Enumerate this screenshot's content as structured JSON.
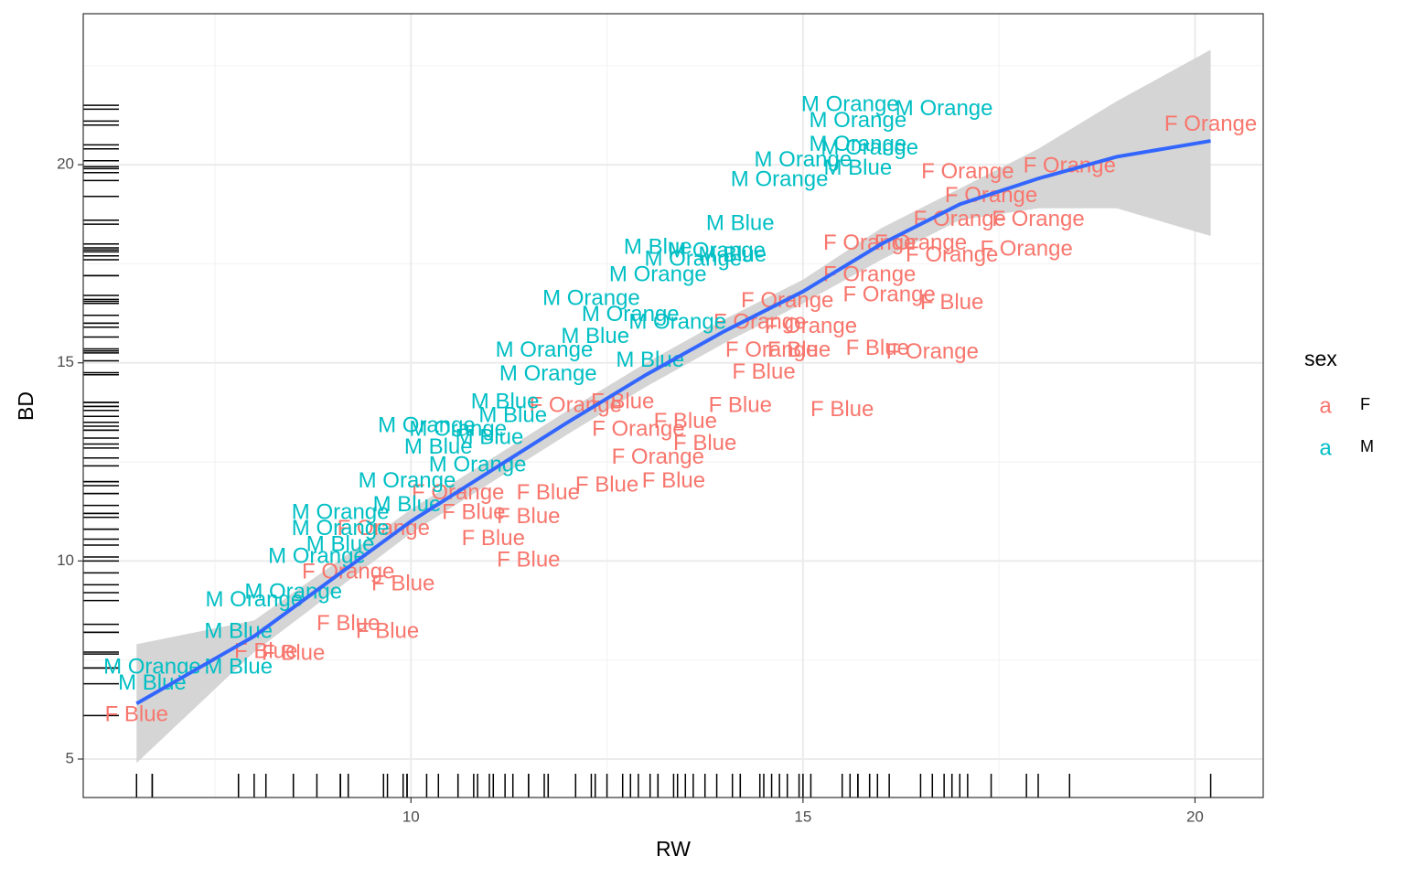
{
  "chart_data": {
    "type": "scatter",
    "xlabel": "RW",
    "ylabel": "BD",
    "xlim": [
      5.82,
      20.87
    ],
    "ylim": [
      4.03,
      23.81
    ],
    "xticks": [
      10,
      15,
      20
    ],
    "yticks": [
      5,
      10,
      15,
      20
    ],
    "x_minor_breaks": [
      7.5,
      12.5,
      17.5
    ],
    "y_minor_breaks": [
      7.5,
      12.5,
      17.5,
      22.5
    ],
    "grid": true,
    "legend_title": "sex",
    "legend_key_glyph": "a",
    "series": [
      {
        "name": "F",
        "color": "#F8766D",
        "x": [
          6.5,
          20.2,
          18.4,
          17.1,
          17.4,
          18.0,
          17.85,
          17.0,
          16.9,
          15.85,
          16.9,
          16.1,
          15.95,
          16.65,
          15.1,
          14.95,
          15.5,
          13.75,
          13.35,
          12.5,
          12.9,
          11.5,
          10.8,
          11.5,
          9.9,
          9.7,
          9.2,
          8.5,
          8.15,
          9.2,
          9.65,
          11.75,
          12.1,
          14.2,
          14.5,
          14.6,
          14.45,
          14.8,
          13.5,
          15.85,
          16.5,
          12.7,
          13.15,
          11.05,
          10.6
        ],
        "y": [
          6.1,
          21.0,
          19.95,
          19.8,
          19.2,
          18.6,
          17.85,
          18.6,
          17.7,
          18.0,
          16.5,
          16.7,
          15.35,
          15.25,
          15.9,
          15.3,
          13.8,
          12.95,
          12.0,
          11.9,
          13.3,
          11.1,
          11.2,
          10.0,
          9.4,
          8.2,
          8.4,
          7.65,
          7.7,
          9.7,
          10.8,
          11.7,
          13.9,
          13.9,
          14.75,
          15.3,
          16.0,
          16.55,
          13.5,
          17.2,
          18.0,
          14.0,
          12.6,
          10.55,
          11.7
        ],
        "labels": [
          "F Blue",
          "F Orange",
          "F Orange",
          "F Orange",
          "F Orange",
          "F Orange",
          "F Orange",
          "F Orange",
          "F Orange",
          "F Orange",
          "F Blue",
          "F Orange",
          "F Blue",
          "F Orange",
          "F Orange",
          "F Blue",
          "F Blue",
          "F Blue",
          "F Blue",
          "F Blue",
          "F Orange",
          "F Blue",
          "F Blue",
          "F Blue",
          "F Blue",
          "F Blue",
          "F Blue",
          "F Blue",
          "F Blue",
          "F Orange",
          "F Orange",
          "F Blue",
          "F Orange",
          "F Blue",
          "F Blue",
          "F Orange",
          "F Orange",
          "F Orange",
          "F Blue",
          "F Orange",
          "F Orange",
          "F Blue",
          "F Orange",
          "F Blue",
          "F Orange"
        ]
      },
      {
        "name": "M",
        "color": "#00BFC4",
        "x": [
          6.7,
          6.7,
          7.8,
          7.8,
          8.0,
          8.5,
          8.8,
          9.1,
          9.1,
          9.1,
          9.95,
          9.95,
          10.2,
          11.0,
          11.7,
          12.3,
          13.6,
          14.2,
          14.7,
          15.0,
          15.6,
          16.8,
          15.7,
          15.7,
          15.7,
          15.85,
          13.15,
          13.15,
          12.35,
          12.8,
          11.75,
          11.2,
          10.6,
          10.35,
          10.85,
          11.3,
          13.9,
          14.1,
          13.4,
          13.05
        ],
        "y": [
          6.9,
          7.3,
          8.2,
          7.3,
          9.0,
          9.2,
          10.1,
          10.4,
          10.8,
          11.2,
          12.0,
          11.4,
          13.4,
          13.1,
          15.3,
          16.6,
          17.6,
          18.5,
          19.6,
          20.1,
          21.5,
          21.4,
          21.1,
          20.5,
          19.9,
          20.4,
          17.9,
          17.2,
          15.65,
          16.2,
          14.7,
          14.0,
          13.3,
          12.85,
          12.4,
          13.65,
          17.8,
          17.7,
          16.0,
          15.05
        ],
        "labels": [
          "M Blue",
          "M Orange",
          "M Blue",
          "M Blue",
          "M Orange",
          "M Orange",
          "M Orange",
          "M Blue",
          "M Orange",
          "M Orange",
          "M Orange",
          "M Blue",
          "M Orange",
          "M Blue",
          "M Orange",
          "M Orange",
          "M Orange",
          "M Blue",
          "M Orange",
          "M Orange",
          "M Orange",
          "M Orange",
          "M Orange",
          "M Orange",
          "M Blue",
          "M Orange",
          "M Blue",
          "M Orange",
          "M Blue",
          "M Orange",
          "M Orange",
          "M Blue",
          "M Orange",
          "M Blue",
          "M Orange",
          "M Blue",
          "M Orange",
          "M Blue",
          "M Orange",
          "M Blue"
        ]
      }
    ],
    "smooth": {
      "color": "#3366FF",
      "fill": "#d3d3d3",
      "x": [
        6.5,
        8,
        10,
        12,
        13,
        14,
        15,
        16,
        17,
        18,
        19,
        20.2
      ],
      "y": [
        6.4,
        8.1,
        11.0,
        13.5,
        14.7,
        15.8,
        16.8,
        18.0,
        19.0,
        19.65,
        20.2,
        20.6
      ],
      "ymin": [
        4.9,
        7.7,
        10.7,
        13.2,
        14.4,
        15.5,
        16.5,
        17.6,
        18.6,
        18.9,
        18.9,
        18.2
      ],
      "ymax": [
        7.9,
        8.5,
        11.3,
        13.8,
        15.0,
        16.1,
        17.1,
        18.4,
        19.4,
        20.4,
        21.6,
        22.9
      ]
    }
  }
}
